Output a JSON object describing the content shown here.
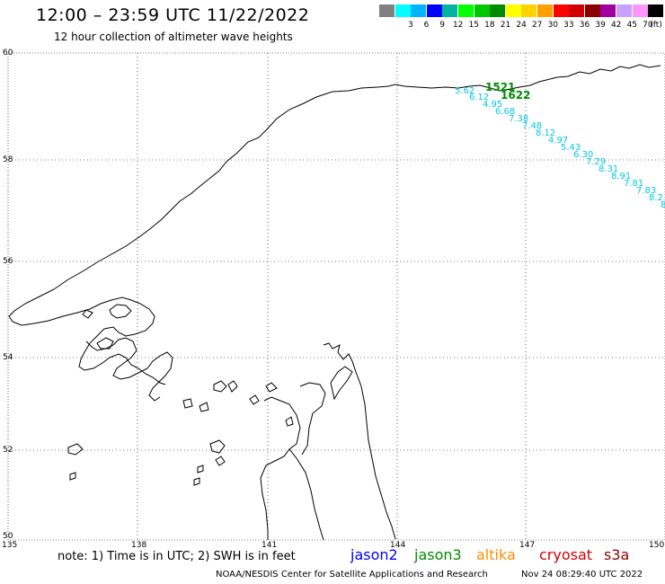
{
  "header": {
    "title": "12:00 – 23:59 UTC 11/22/2022",
    "subtitle": "12 hour collection of altimeter wave heights"
  },
  "scale": {
    "labels": [
      "",
      "3",
      "6",
      "9",
      "12",
      "15",
      "18",
      "21",
      "24",
      "27",
      "30",
      "33",
      "36",
      "39",
      "42",
      "45",
      "70"
    ],
    "colors": [
      "#808080",
      "#00ffff",
      "#00b4ff",
      "#0000ff",
      "#00b4a0",
      "#00ff00",
      "#00c800",
      "#008c00",
      "#ffff00",
      "#ffd200",
      "#ffa000",
      "#ff0000",
      "#d20000",
      "#8c0000",
      "#a000a0",
      "#c8a0ff",
      "#ff96ff",
      "#000000"
    ],
    "unit": "(ft)"
  },
  "axes": {
    "lat_labels": [
      "60",
      "58",
      "56",
      "54",
      "52",
      "50"
    ],
    "lon_labels": [
      "135",
      "138",
      "141",
      "144",
      "147",
      "150"
    ]
  },
  "track": {
    "color": "#00c8e6",
    "labels": [
      "5.62",
      "6.12",
      "4.95",
      "6.68",
      "7.38",
      "7.48",
      "8.12",
      "4.97",
      "5.43",
      "6.30",
      "7.29",
      "8.31",
      "8.91",
      "7.81",
      "7.83",
      "8.2",
      "8"
    ]
  },
  "time_markers": {
    "color": "#008c00",
    "labels": [
      "1521",
      "1622"
    ]
  },
  "footer": {
    "note": "note: 1) Time is in UTC; 2) SWH is in feet",
    "satellites": [
      {
        "name": "jason2",
        "color": "#0000ff"
      },
      {
        "name": "jason3",
        "color": "#008c00"
      },
      {
        "name": "altika",
        "color": "#ff8c00"
      },
      {
        "name": "cryosat",
        "color": "#d20000"
      },
      {
        "name": "s3a",
        "color": "#8c0000"
      }
    ],
    "credit": "NOAA/NESDIS Center for Satellite Applications and Research",
    "timestamp": "Nov 24 08:29:40 UTC 2022"
  }
}
